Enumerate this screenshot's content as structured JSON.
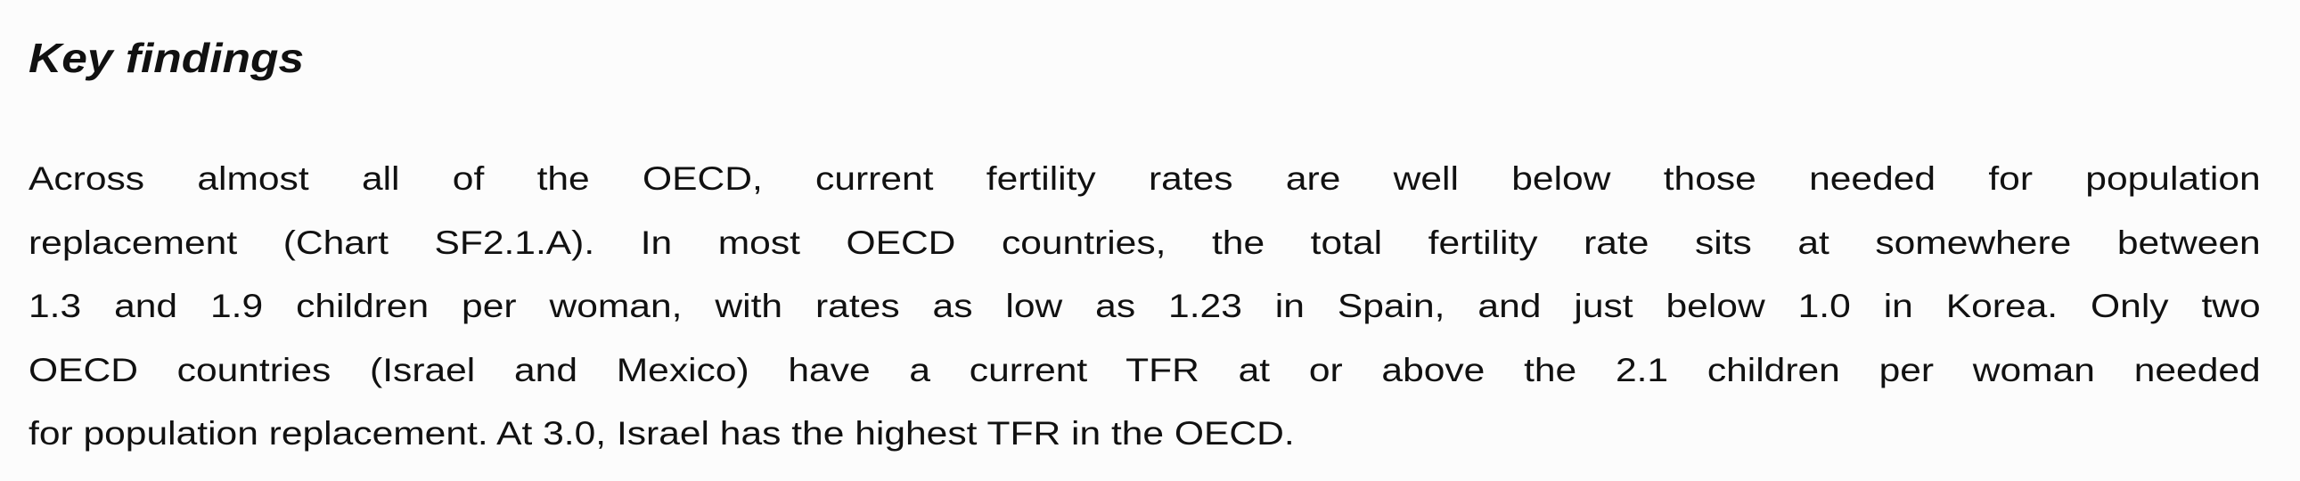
{
  "heading": "Key findings",
  "paragraph_lines": [
    "Across almost all of the OECD, current fertility rates are well below those needed for population",
    "replacement (Chart SF2.1.A). In most OECD countries, the total fertility rate sits at somewhere between",
    "1.3 and 1.9 children per woman, with rates as low as 1.23 in Spain, and just below 1.0 in Korea. Only two",
    "OECD countries (Israel and Mexico) have a current TFR at or above the 2.1 children per woman needed",
    "for population replacement. At 3.0, Israel has the highest TFR in the OECD."
  ]
}
